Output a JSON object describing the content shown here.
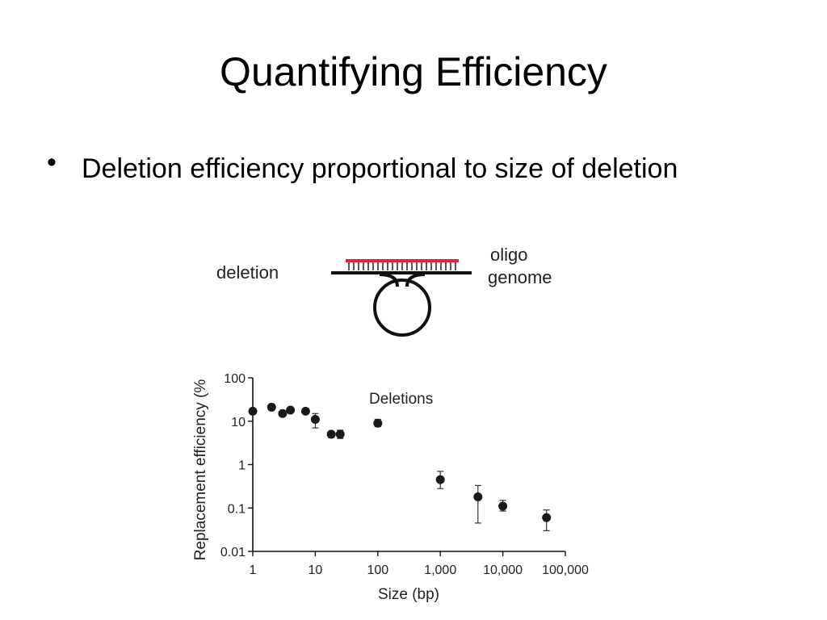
{
  "slide": {
    "title": "Quantifying Efficiency",
    "bullet": "Deletion efficiency proportional to size of deletion"
  },
  "schematic": {
    "deletion_label": "deletion",
    "oligo_label": "oligo",
    "genome_label": "genome",
    "oligo_color": "#e8213a",
    "genome_color": "#111111"
  },
  "chart_data": {
    "type": "scatter",
    "annotation": "Deletions",
    "xlabel": "Size (bp)",
    "ylabel": "Replacement efficiency (%",
    "xscale": "log",
    "yscale": "log",
    "xlim": [
      1,
      100000
    ],
    "ylim": [
      0.01,
      100
    ],
    "x_ticks": [
      1,
      10,
      100,
      1000,
      10000,
      100000
    ],
    "x_tick_labels": [
      "1",
      "10",
      "100",
      "1,000",
      "10,000",
      "100,000"
    ],
    "y_ticks": [
      0.01,
      0.1,
      1,
      10,
      100
    ],
    "y_tick_labels": [
      "0.01",
      "0.1",
      "1",
      "10",
      "100"
    ],
    "grid": false,
    "marker_color": "#1a1a1a",
    "points": [
      {
        "x": 1,
        "y": 17,
        "err_low": 17,
        "err_high": 17
      },
      {
        "x": 2,
        "y": 21,
        "err_low": 21,
        "err_high": 21
      },
      {
        "x": 3,
        "y": 15,
        "err_low": 15,
        "err_high": 15
      },
      {
        "x": 4,
        "y": 18,
        "err_low": 18,
        "err_high": 18
      },
      {
        "x": 7,
        "y": 17,
        "err_low": 17,
        "err_high": 17
      },
      {
        "x": 10,
        "y": 11,
        "err_low": 7,
        "err_high": 15
      },
      {
        "x": 18,
        "y": 5,
        "err_low": 4.2,
        "err_high": 5.8
      },
      {
        "x": 25,
        "y": 5,
        "err_low": 4,
        "err_high": 6.2
      },
      {
        "x": 100,
        "y": 9,
        "err_low": 7.5,
        "err_high": 11
      },
      {
        "x": 1000,
        "y": 0.45,
        "err_low": 0.28,
        "err_high": 0.7
      },
      {
        "x": 4000,
        "y": 0.18,
        "err_low": 0.045,
        "err_high": 0.33
      },
      {
        "x": 10000,
        "y": 0.11,
        "err_low": 0.085,
        "err_high": 0.15
      },
      {
        "x": 50000,
        "y": 0.06,
        "err_low": 0.03,
        "err_high": 0.09
      }
    ]
  }
}
